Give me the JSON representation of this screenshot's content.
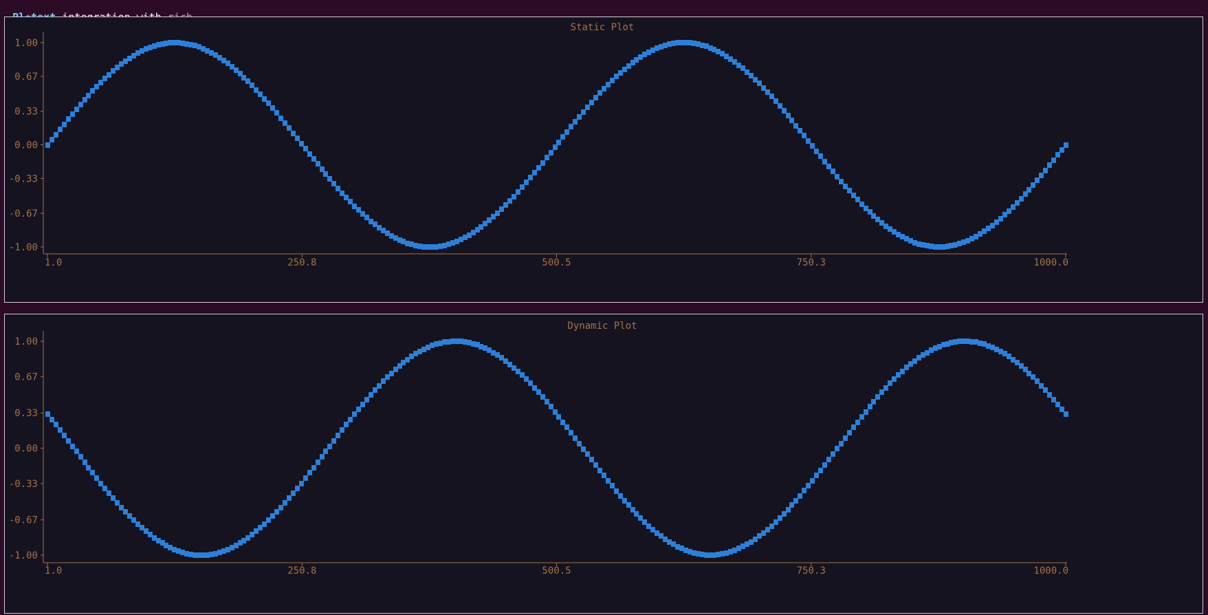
{
  "titlebar": {
    "logo_text": "Pl",
    "logo_glyph": "✺",
    "brand": "text",
    "text_main": " integration with ",
    "text_dim": "rich",
    "cursor": "_",
    "colors": {
      "logo": "#5fd7ff",
      "brand": "#5fd7ff",
      "main": "#ffffff",
      "dim": "#b8b2bb"
    }
  },
  "colors": {
    "background": "#2b0b26",
    "plot_background": "#15131f",
    "axis": "#a3724a",
    "series": "#2e7fd8",
    "border": "#d4cbd8"
  },
  "chart_data": [
    {
      "type": "scatter",
      "title": "Static Plot",
      "xlabel": "",
      "ylabel": "",
      "xlim": [
        1.0,
        1000.0
      ],
      "ylim": [
        -1.0,
        1.0
      ],
      "x_ticks": [
        "1.0",
        "250.8",
        "500.5",
        "750.3",
        "1000.0"
      ],
      "x_tick_values": [
        1.0,
        250.8,
        500.5,
        750.3,
        1000.0
      ],
      "y_ticks": [
        "1.00",
        "0.67",
        "0.33",
        "0.00",
        "-0.33",
        "-0.67",
        "-1.00"
      ],
      "y_tick_values": [
        1.0,
        0.67,
        0.33,
        0.0,
        -0.33,
        -0.67,
        -1.0
      ],
      "grid": false,
      "series": [
        {
          "function": "sin",
          "periods": 2,
          "phase": 0.0,
          "samples": 250,
          "x_range": [
            1.0,
            1000.0
          ]
        }
      ]
    },
    {
      "type": "scatter",
      "title": "Dynamic Plot",
      "xlabel": "",
      "ylabel": "",
      "xlim": [
        1.0,
        1000.0
      ],
      "ylim": [
        -1.0,
        1.0
      ],
      "x_ticks": [
        "1.0",
        "250.8",
        "500.5",
        "750.3",
        "1000.0"
      ],
      "x_tick_values": [
        1.0,
        250.8,
        500.5,
        750.3,
        1000.0
      ],
      "y_ticks": [
        "1.00",
        "0.67",
        "0.33",
        "0.00",
        "-0.33",
        "-0.67",
        "-1.00"
      ],
      "y_tick_values": [
        1.0,
        0.67,
        0.33,
        0.0,
        -0.33,
        -0.67,
        -1.0
      ],
      "grid": false,
      "series": [
        {
          "function": "sin",
          "periods": 2,
          "phase": 2.82,
          "samples": 250,
          "x_range": [
            1.0,
            1000.0
          ]
        }
      ]
    }
  ]
}
